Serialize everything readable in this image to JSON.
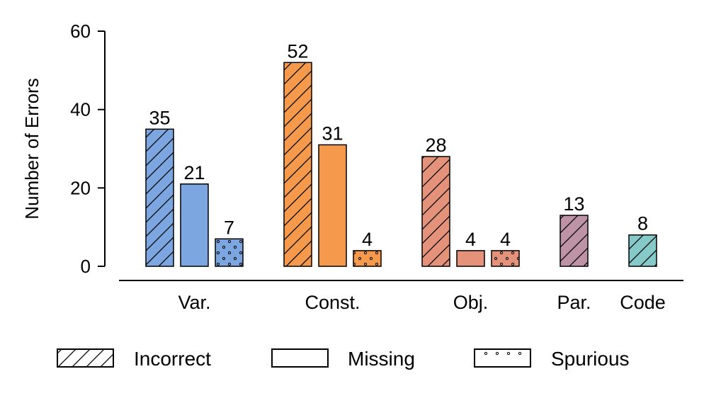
{
  "chart_data": {
    "type": "bar",
    "title": "",
    "xlabel": "",
    "ylabel": "Number of Errors",
    "ylim": [
      0,
      60
    ],
    "yticks": [
      0,
      20,
      40,
      60
    ],
    "grid": false,
    "legend_position": "bottom",
    "categories": [
      "Var.",
      "Const.",
      "Obj.",
      "Par.",
      "Code"
    ],
    "legend": [
      {
        "key": "incorrect",
        "label": "Incorrect",
        "pattern": "hatch"
      },
      {
        "key": "missing",
        "label": "Missing",
        "pattern": "none"
      },
      {
        "key": "spurious",
        "label": "Spurious",
        "pattern": "dots"
      }
    ],
    "groups": [
      {
        "category": "Var.",
        "color": "#7ba6e0",
        "bars": [
          {
            "type": "incorrect",
            "value": 35
          },
          {
            "type": "missing",
            "value": 21
          },
          {
            "type": "spurious",
            "value": 7
          }
        ]
      },
      {
        "category": "Const.",
        "color": "#f59a4c",
        "bars": [
          {
            "type": "incorrect",
            "value": 52
          },
          {
            "type": "missing",
            "value": 31
          },
          {
            "type": "spurious",
            "value": 4
          }
        ]
      },
      {
        "category": "Obj.",
        "color": "#e5927a",
        "bars": [
          {
            "type": "incorrect",
            "value": 28
          },
          {
            "type": "missing",
            "value": 4
          },
          {
            "type": "spurious",
            "value": 4
          }
        ]
      },
      {
        "category": "Par.",
        "color": "#be93a6",
        "bars": [
          {
            "type": "incorrect",
            "value": 13
          }
        ]
      },
      {
        "category": "Code",
        "color": "#86c9c9",
        "bars": [
          {
            "type": "incorrect",
            "value": 8
          }
        ]
      }
    ]
  }
}
